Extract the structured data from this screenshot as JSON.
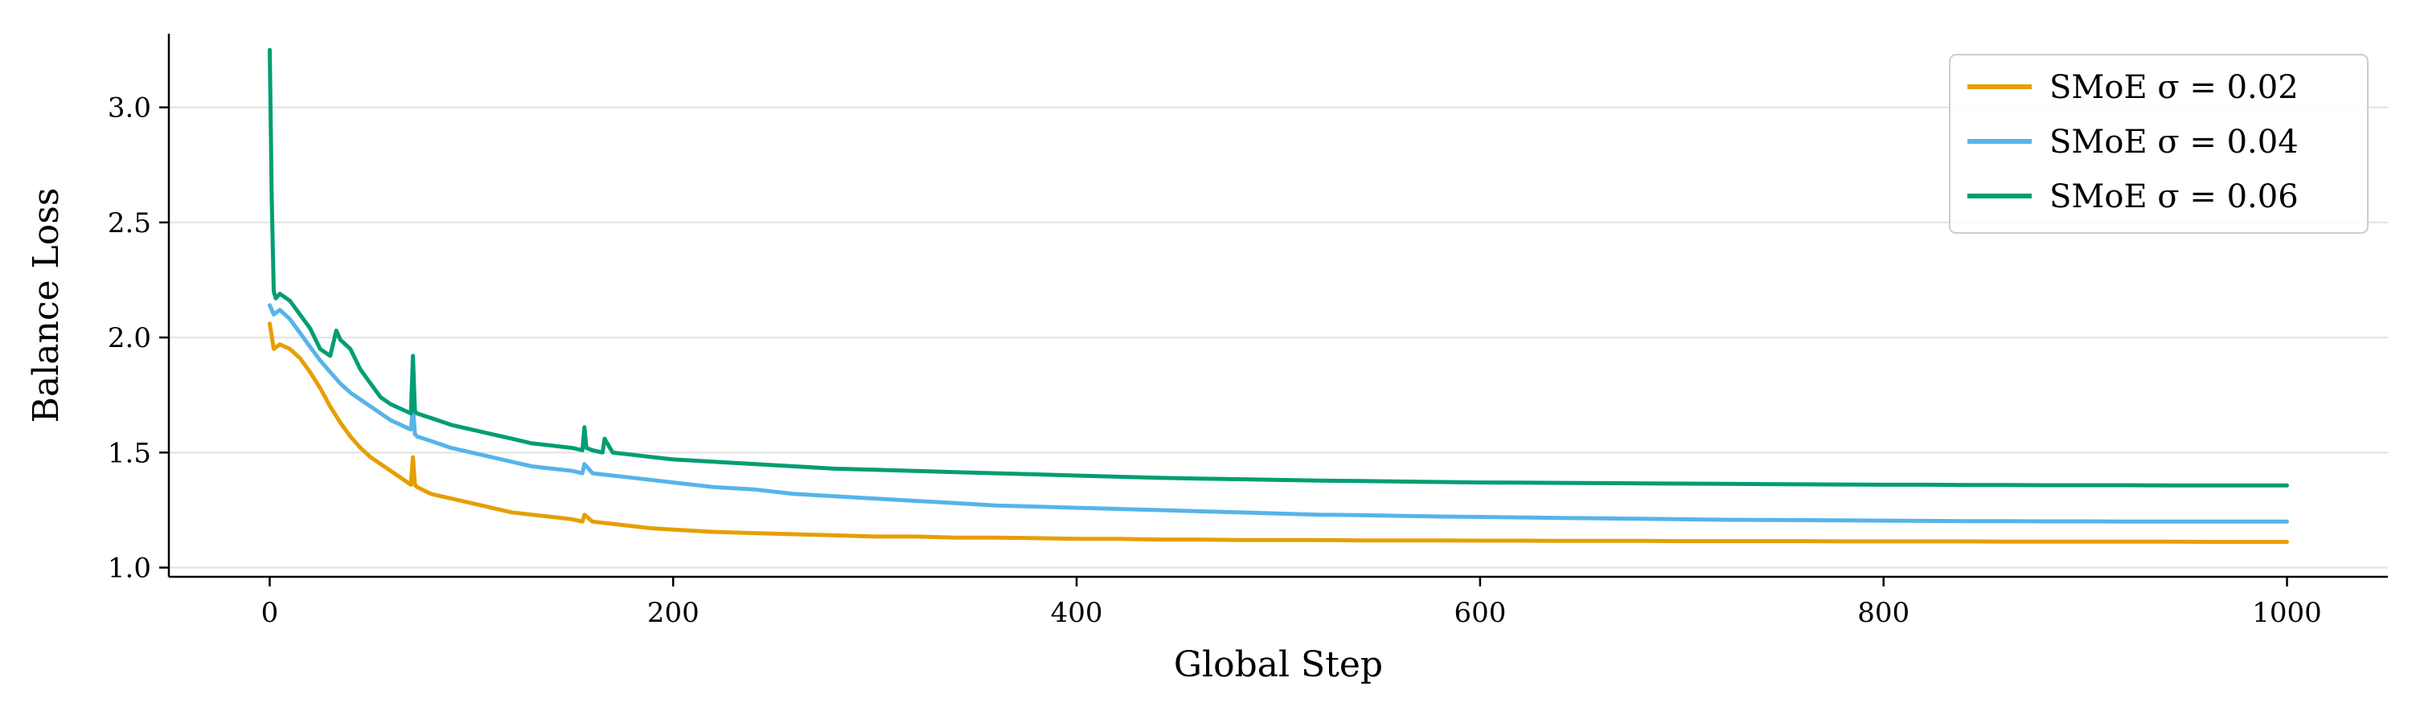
{
  "chart_data": {
    "type": "line",
    "title": "",
    "xlabel": "Global Step",
    "ylabel": "Balance Loss",
    "xlim": [
      -50,
      1050
    ],
    "ylim": [
      0.96,
      3.32
    ],
    "xticks": [
      0,
      200,
      400,
      600,
      800,
      1000
    ],
    "yticks": [
      1.0,
      1.5,
      2.0,
      2.5,
      3.0
    ],
    "xtick_labels": [
      "0",
      "200",
      "400",
      "600",
      "800",
      "1000"
    ],
    "ytick_labels": [
      "1.0",
      "1.5",
      "2.0",
      "2.5",
      "3.0"
    ],
    "grid": "horizontal",
    "legend_position": "top-right",
    "series": [
      {
        "name": "SMoE σ = 0.02",
        "color": "#E69F00",
        "x": [
          0,
          2,
          5,
          10,
          15,
          20,
          25,
          30,
          35,
          40,
          45,
          50,
          60,
          70,
          71,
          72,
          73,
          80,
          90,
          100,
          110,
          120,
          130,
          140,
          150,
          155,
          156,
          160,
          170,
          180,
          190,
          200,
          220,
          240,
          260,
          280,
          300,
          320,
          340,
          360,
          380,
          400,
          420,
          440,
          460,
          480,
          500,
          520,
          540,
          560,
          580,
          600,
          620,
          640,
          660,
          680,
          700,
          720,
          740,
          760,
          780,
          800,
          820,
          840,
          860,
          880,
          900,
          920,
          940,
          960,
          980,
          1000
        ],
        "values": [
          2.06,
          1.95,
          1.97,
          1.95,
          1.91,
          1.85,
          1.78,
          1.7,
          1.63,
          1.57,
          1.52,
          1.48,
          1.42,
          1.36,
          1.48,
          1.36,
          1.35,
          1.32,
          1.3,
          1.28,
          1.26,
          1.24,
          1.23,
          1.22,
          1.21,
          1.2,
          1.23,
          1.2,
          1.19,
          1.18,
          1.17,
          1.165,
          1.155,
          1.15,
          1.145,
          1.14,
          1.135,
          1.135,
          1.13,
          1.13,
          1.128,
          1.125,
          1.125,
          1.122,
          1.122,
          1.12,
          1.12,
          1.12,
          1.118,
          1.118,
          1.118,
          1.117,
          1.117,
          1.116,
          1.116,
          1.116,
          1.115,
          1.115,
          1.115,
          1.115,
          1.114,
          1.114,
          1.114,
          1.114,
          1.113,
          1.113,
          1.113,
          1.113,
          1.113,
          1.112,
          1.112,
          1.112
        ]
      },
      {
        "name": "SMoE σ = 0.04",
        "color": "#56B4E9",
        "x": [
          0,
          2,
          5,
          10,
          15,
          20,
          25,
          30,
          35,
          40,
          45,
          50,
          60,
          70,
          71,
          72,
          73,
          80,
          90,
          100,
          110,
          120,
          130,
          140,
          150,
          155,
          156,
          160,
          170,
          180,
          190,
          200,
          220,
          240,
          260,
          280,
          300,
          320,
          340,
          360,
          380,
          400,
          420,
          440,
          460,
          480,
          500,
          520,
          540,
          560,
          580,
          600,
          620,
          640,
          660,
          680,
          700,
          720,
          740,
          760,
          780,
          800,
          820,
          840,
          860,
          880,
          900,
          920,
          940,
          960,
          980,
          1000
        ],
        "values": [
          2.14,
          2.1,
          2.12,
          2.08,
          2.02,
          1.96,
          1.9,
          1.85,
          1.8,
          1.76,
          1.73,
          1.7,
          1.64,
          1.6,
          1.7,
          1.58,
          1.57,
          1.55,
          1.52,
          1.5,
          1.48,
          1.46,
          1.44,
          1.43,
          1.42,
          1.41,
          1.45,
          1.41,
          1.4,
          1.39,
          1.38,
          1.37,
          1.35,
          1.34,
          1.32,
          1.31,
          1.3,
          1.29,
          1.28,
          1.27,
          1.265,
          1.26,
          1.255,
          1.25,
          1.245,
          1.24,
          1.235,
          1.23,
          1.228,
          1.225,
          1.222,
          1.22,
          1.218,
          1.216,
          1.214,
          1.212,
          1.21,
          1.208,
          1.207,
          1.206,
          1.205,
          1.204,
          1.203,
          1.202,
          1.202,
          1.201,
          1.201,
          1.2,
          1.2,
          1.2,
          1.2,
          1.2
        ]
      },
      {
        "name": "SMoE σ = 0.06",
        "color": "#009E73",
        "x": [
          0,
          1,
          2,
          3,
          5,
          10,
          15,
          20,
          25,
          30,
          33,
          35,
          40,
          45,
          50,
          55,
          60,
          65,
          70,
          71,
          72,
          73,
          80,
          90,
          100,
          110,
          120,
          130,
          140,
          150,
          155,
          156,
          157,
          160,
          165,
          166,
          170,
          180,
          190,
          200,
          220,
          240,
          260,
          280,
          300,
          320,
          340,
          360,
          380,
          400,
          420,
          440,
          460,
          480,
          500,
          520,
          540,
          560,
          580,
          600,
          620,
          640,
          660,
          680,
          700,
          720,
          740,
          760,
          780,
          800,
          820,
          840,
          860,
          880,
          900,
          920,
          940,
          960,
          980,
          1000
        ],
        "values": [
          3.25,
          2.6,
          2.2,
          2.17,
          2.19,
          2.16,
          2.1,
          2.04,
          1.95,
          1.92,
          2.03,
          1.99,
          1.95,
          1.86,
          1.8,
          1.74,
          1.71,
          1.69,
          1.67,
          1.92,
          1.68,
          1.67,
          1.65,
          1.62,
          1.6,
          1.58,
          1.56,
          1.54,
          1.53,
          1.52,
          1.51,
          1.61,
          1.52,
          1.51,
          1.5,
          1.56,
          1.5,
          1.49,
          1.48,
          1.47,
          1.46,
          1.45,
          1.44,
          1.43,
          1.425,
          1.42,
          1.415,
          1.41,
          1.405,
          1.4,
          1.395,
          1.39,
          1.387,
          1.384,
          1.381,
          1.378,
          1.376,
          1.374,
          1.372,
          1.37,
          1.369,
          1.368,
          1.367,
          1.366,
          1.365,
          1.364,
          1.363,
          1.362,
          1.361,
          1.36,
          1.36,
          1.359,
          1.359,
          1.358,
          1.358,
          1.358,
          1.357,
          1.357,
          1.357,
          1.357
        ]
      }
    ]
  }
}
